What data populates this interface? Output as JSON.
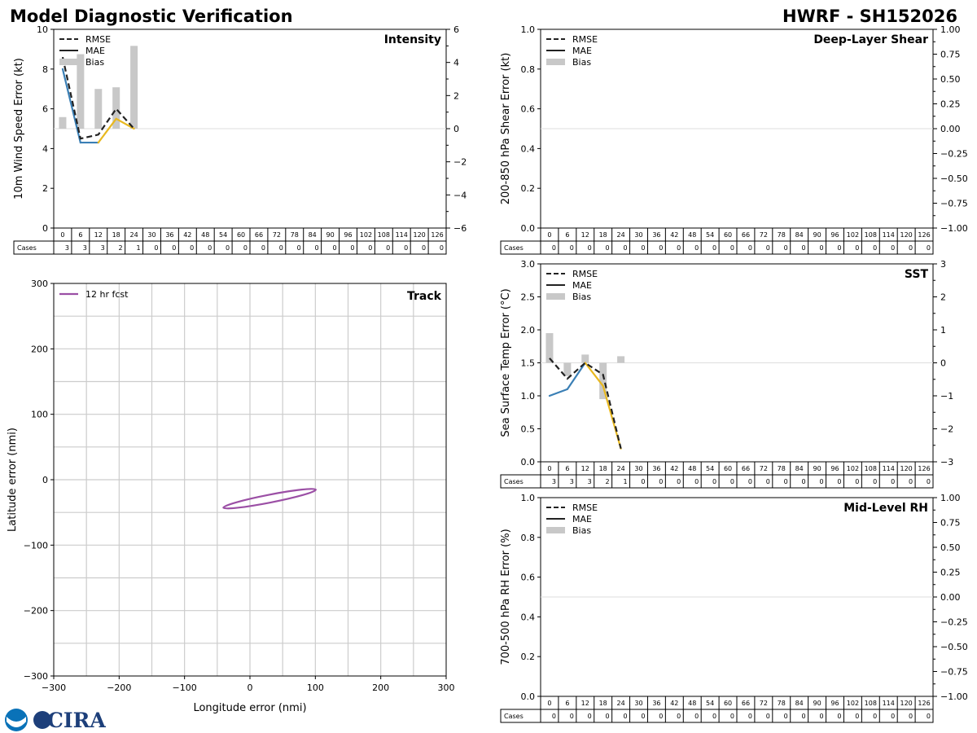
{
  "header": {
    "title_left": "Model Diagnostic Verification",
    "title_right": "HWRF - SH152026"
  },
  "logo": {
    "text": "CIRA"
  },
  "colors": {
    "rmse": "#222222",
    "mae_early": "#3a7fb5",
    "mae_late": "#e8b820",
    "bias": "#c8c8c8",
    "track": "#9b4fa5",
    "grid": "#cccccc"
  },
  "legend_labels": {
    "rmse": "RMSE",
    "mae": "MAE",
    "bias": "Bias"
  },
  "cases_label": "Cases",
  "chart_data": [
    {
      "id": "intensity",
      "type": "line",
      "title": "Intensity",
      "ylabel": "10m Wind Speed Error (kt)",
      "ylim": [
        0,
        10
      ],
      "yticks": [
        "0",
        "2",
        "4",
        "6",
        "8",
        "10"
      ],
      "y2lim": [
        -6,
        6
      ],
      "y2ticks": [
        "−6",
        "−4",
        "−2",
        "0",
        "2",
        "4",
        "6"
      ],
      "hours": [
        "0",
        "6",
        "12",
        "18",
        "24",
        "30",
        "36",
        "42",
        "48",
        "54",
        "60",
        "66",
        "72",
        "78",
        "84",
        "90",
        "96",
        "102",
        "108",
        "114",
        "120",
        "126"
      ],
      "cases": [
        "3",
        "3",
        "3",
        "2",
        "1",
        "0",
        "0",
        "0",
        "0",
        "0",
        "0",
        "0",
        "0",
        "0",
        "0",
        "0",
        "0",
        "0",
        "0",
        "0",
        "0",
        "0"
      ],
      "series": [
        {
          "name": "RMSE",
          "x": [
            0,
            6,
            12,
            18,
            24
          ],
          "values": [
            8.6,
            4.5,
            4.7,
            6.0,
            5.0
          ]
        },
        {
          "name": "MAE",
          "x": [
            0,
            6,
            12,
            18,
            24
          ],
          "values": [
            8.0,
            4.3,
            4.3,
            5.5,
            5.0
          ]
        },
        {
          "name": "Bias",
          "x": [
            0,
            6,
            12,
            18,
            24
          ],
          "values": [
            0.7,
            4.5,
            2.4,
            2.5,
            5.0
          ]
        }
      ]
    },
    {
      "id": "shear",
      "type": "line",
      "title": "Deep-Layer Shear",
      "ylabel": "200-850 hPa Shear Error (kt)",
      "ylim": [
        0,
        1
      ],
      "yticks": [
        "0.0",
        "0.2",
        "0.4",
        "0.6",
        "0.8",
        "1.0"
      ],
      "y2lim": [
        -1,
        1
      ],
      "y2ticks": [
        "−1.00",
        "−0.75",
        "−0.50",
        "−0.25",
        "0.00",
        "0.25",
        "0.50",
        "0.75",
        "1.00"
      ],
      "hours": [
        "0",
        "6",
        "12",
        "18",
        "24",
        "30",
        "36",
        "42",
        "48",
        "54",
        "60",
        "66",
        "72",
        "78",
        "84",
        "90",
        "96",
        "102",
        "108",
        "114",
        "120",
        "126"
      ],
      "cases": [
        "0",
        "0",
        "0",
        "0",
        "0",
        "0",
        "0",
        "0",
        "0",
        "0",
        "0",
        "0",
        "0",
        "0",
        "0",
        "0",
        "0",
        "0",
        "0",
        "0",
        "0",
        "0"
      ],
      "series": []
    },
    {
      "id": "sst",
      "type": "line",
      "title": "SST",
      "ylabel": "Sea Surface Temp Error (°C)",
      "ylim": [
        0,
        3
      ],
      "yticks": [
        "0.0",
        "0.5",
        "1.0",
        "1.5",
        "2.0",
        "2.5",
        "3.0"
      ],
      "y2lim": [
        -3,
        3
      ],
      "y2ticks": [
        "−3",
        "−2",
        "−1",
        "0",
        "1",
        "2",
        "3"
      ],
      "hours": [
        "0",
        "6",
        "12",
        "18",
        "24",
        "30",
        "36",
        "42",
        "48",
        "54",
        "60",
        "66",
        "72",
        "78",
        "84",
        "90",
        "96",
        "102",
        "108",
        "114",
        "120",
        "126"
      ],
      "cases": [
        "3",
        "3",
        "3",
        "2",
        "1",
        "0",
        "0",
        "0",
        "0",
        "0",
        "0",
        "0",
        "0",
        "0",
        "0",
        "0",
        "0",
        "0",
        "0",
        "0",
        "0",
        "0"
      ],
      "series": [
        {
          "name": "RMSE",
          "x": [
            0,
            6,
            12,
            18,
            24
          ],
          "values": [
            1.57,
            1.26,
            1.5,
            1.32,
            0.2
          ]
        },
        {
          "name": "MAE",
          "x": [
            0,
            6,
            12,
            18,
            24
          ],
          "values": [
            1.0,
            1.1,
            1.5,
            1.15,
            0.2
          ]
        },
        {
          "name": "Bias",
          "x": [
            0,
            6,
            12,
            18,
            24
          ],
          "values": [
            0.9,
            -0.4,
            0.25,
            -1.1,
            0.2
          ]
        }
      ]
    },
    {
      "id": "rh",
      "type": "line",
      "title": "Mid-Level RH",
      "ylabel": "700-500 hPa RH Error (%)",
      "ylim": [
        0,
        1
      ],
      "yticks": [
        "0.0",
        "0.2",
        "0.4",
        "0.6",
        "0.8",
        "1.0"
      ],
      "y2lim": [
        -1,
        1
      ],
      "y2ticks": [
        "−1.00",
        "−0.75",
        "−0.50",
        "−0.25",
        "0.00",
        "0.25",
        "0.50",
        "0.75",
        "1.00"
      ],
      "hours": [
        "0",
        "6",
        "12",
        "18",
        "24",
        "30",
        "36",
        "42",
        "48",
        "54",
        "60",
        "66",
        "72",
        "78",
        "84",
        "90",
        "96",
        "102",
        "108",
        "114",
        "120",
        "126"
      ],
      "cases": [
        "0",
        "0",
        "0",
        "0",
        "0",
        "0",
        "0",
        "0",
        "0",
        "0",
        "0",
        "0",
        "0",
        "0",
        "0",
        "0",
        "0",
        "0",
        "0",
        "0",
        "0",
        "0"
      ],
      "series": []
    },
    {
      "id": "track",
      "type": "scatter",
      "title": "Track",
      "xlabel": "Longitude error (nmi)",
      "ylabel": "Latitude error (nmi)",
      "xlim": [
        -300,
        300
      ],
      "ylim": [
        -300,
        300
      ],
      "xticks": [
        "−300",
        "−200",
        "−100",
        "0",
        "100",
        "200",
        "300"
      ],
      "yticks": [
        "−300",
        "−200",
        "−100",
        "0",
        "100",
        "200",
        "300"
      ],
      "series": [
        {
          "name": "12 hr fcst",
          "ellipse": {
            "center_x": 30,
            "center_y": -29,
            "semi_major": 72,
            "semi_minor": 6,
            "angle_deg": 11
          }
        }
      ]
    }
  ]
}
